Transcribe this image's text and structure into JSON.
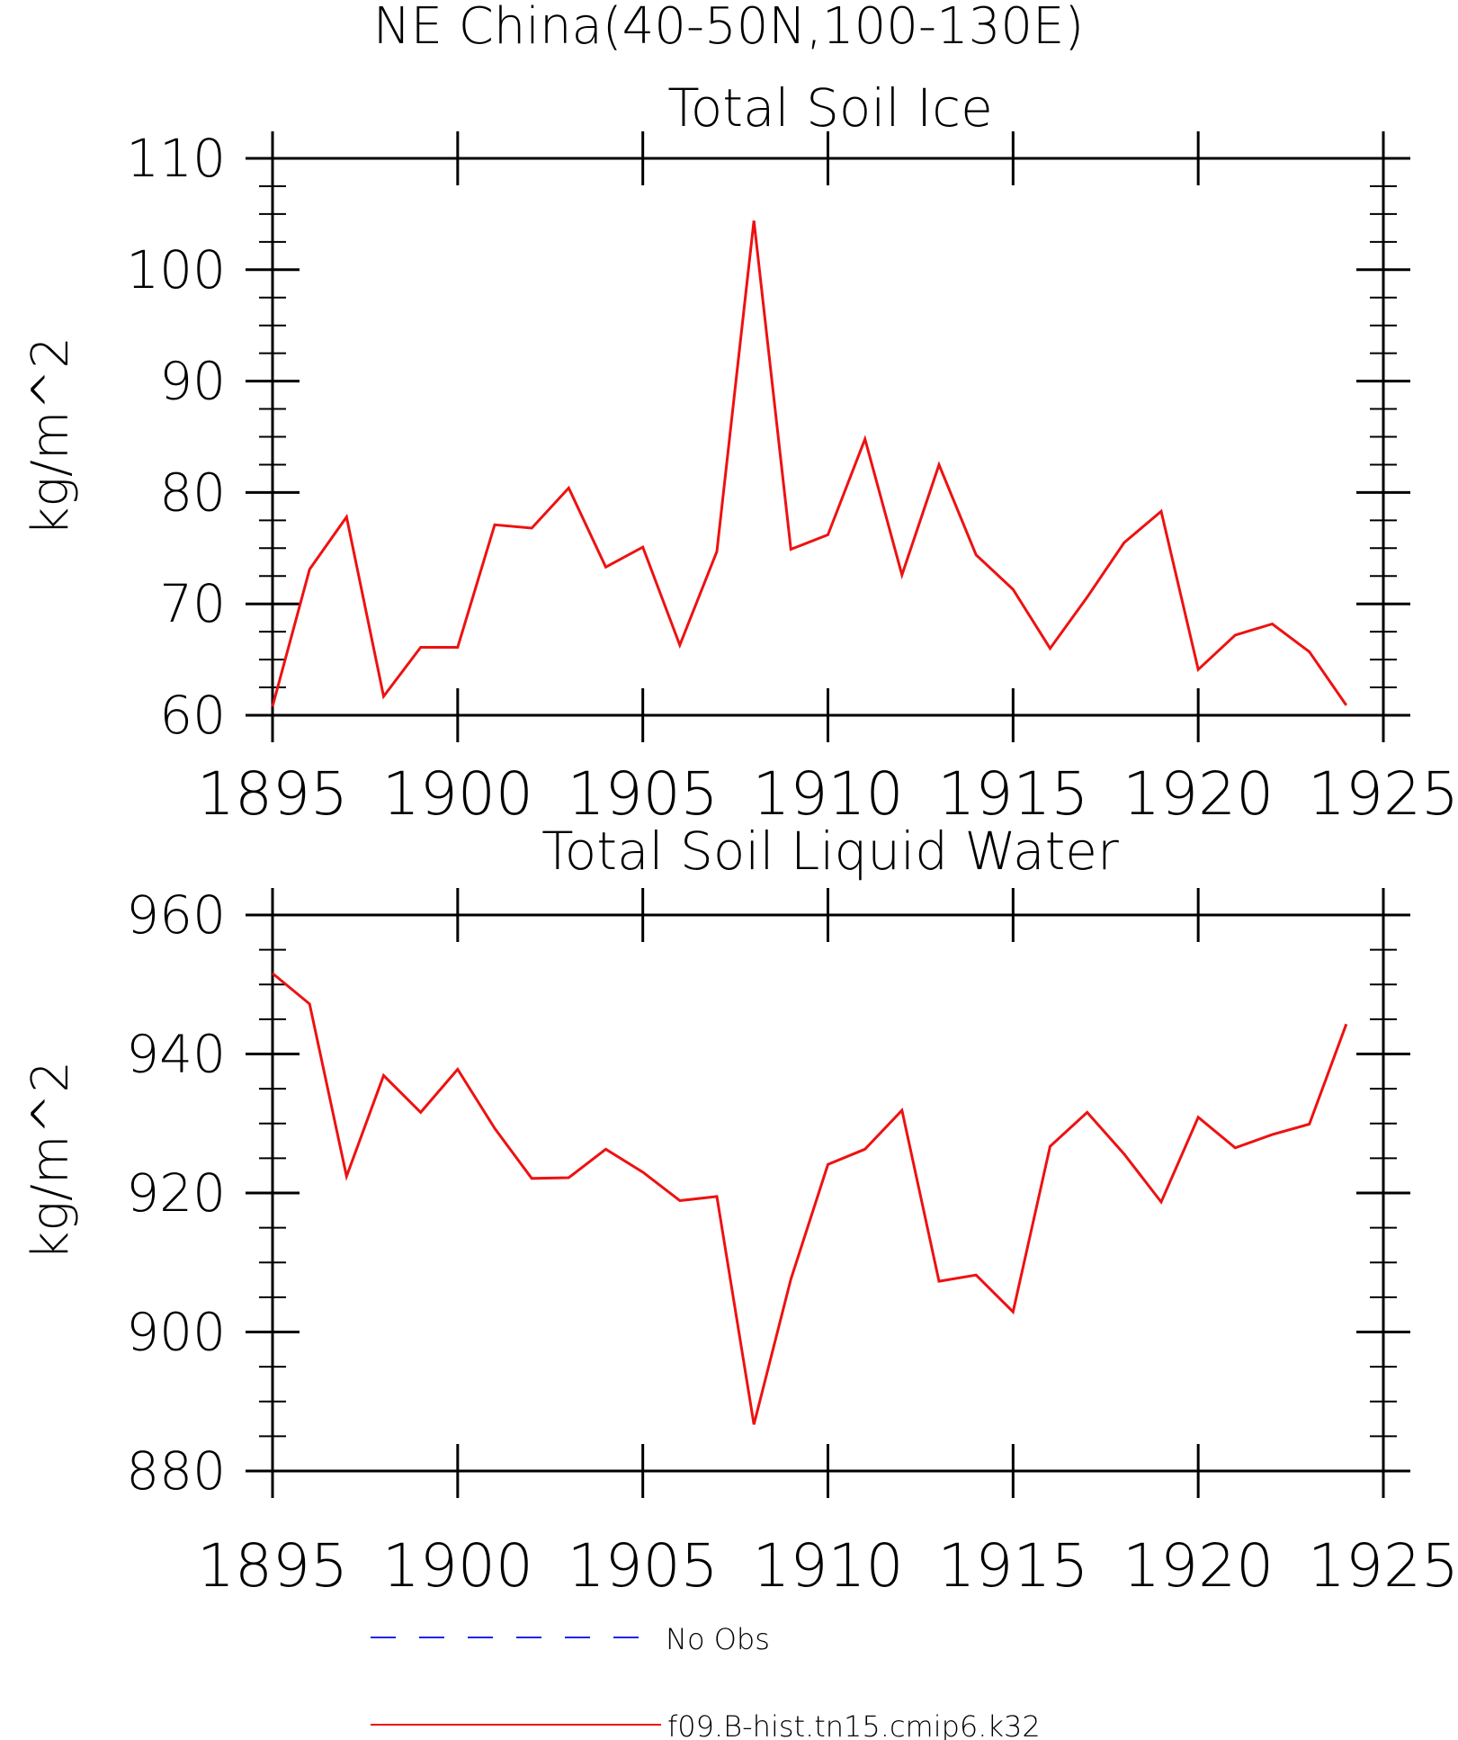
{
  "figure_title": "NE China(40-50N,100-130E)",
  "colors": {
    "model": "#ee1111",
    "obs": "#2222ee",
    "axis": "#000000"
  },
  "legend": {
    "obs_label": "No Obs",
    "model_label": "f09.B-hist.tn15.cmip6.k32"
  },
  "chart_data": [
    {
      "type": "line",
      "title": "Total Soil Ice",
      "ylabel": "kg/m^2",
      "xlabel": "",
      "xlim": [
        1895,
        1925
      ],
      "ylim": [
        60,
        110
      ],
      "xticks": [
        1895,
        1900,
        1905,
        1910,
        1915,
        1920,
        1925
      ],
      "yticks": [
        60,
        70,
        80,
        90,
        100,
        110
      ],
      "grid": false,
      "series": [
        {
          "name": "f09.B-hist.tn15.cmip6.k32",
          "x": [
            1895,
            1896,
            1897,
            1898,
            1899,
            1900,
            1901,
            1902,
            1903,
            1904,
            1905,
            1906,
            1907,
            1908,
            1909,
            1910,
            1911,
            1912,
            1913,
            1914,
            1915,
            1916,
            1917,
            1918,
            1919,
            1920,
            1921,
            1922,
            1923,
            1924
          ],
          "y": [
            60.8,
            73.1,
            77.8,
            61.7,
            66.1,
            66.1,
            77.1,
            76.8,
            80.4,
            73.3,
            75.1,
            66.3,
            74.7,
            104.4,
            74.9,
            76.2,
            84.8,
            72.6,
            82.5,
            74.4,
            71.3,
            66.0,
            70.6,
            75.5,
            78.3,
            64.1,
            67.2,
            68.2,
            65.7,
            60.9
          ]
        }
      ]
    },
    {
      "type": "line",
      "title": "Total Soil Liquid Water",
      "ylabel": "kg/m^2",
      "xlabel": "",
      "xlim": [
        1895,
        1925
      ],
      "ylim": [
        880,
        960
      ],
      "xticks": [
        1895,
        1900,
        1905,
        1910,
        1915,
        1920,
        1925
      ],
      "yticks": [
        880,
        900,
        920,
        940,
        960
      ],
      "grid": false,
      "series": [
        {
          "name": "f09.B-hist.tn15.cmip6.k32",
          "x": [
            1895,
            1896,
            1897,
            1898,
            1899,
            1900,
            1901,
            1902,
            1903,
            1904,
            1905,
            1906,
            1907,
            1908,
            1909,
            1910,
            1911,
            1912,
            1913,
            1914,
            1915,
            1916,
            1917,
            1918,
            1919,
            1920,
            1921,
            1922,
            1923,
            1924
          ],
          "y": [
            951.6,
            947.2,
            922.4,
            936.9,
            931.6,
            937.8,
            929.3,
            922.1,
            922.2,
            926.3,
            923.0,
            918.9,
            919.5,
            886.7,
            907.6,
            924.1,
            926.3,
            931.9,
            907.3,
            908.2,
            902.9,
            926.7,
            931.6,
            925.6,
            918.7,
            930.9,
            926.5,
            928.4,
            929.9,
            944.3
          ]
        }
      ]
    }
  ]
}
